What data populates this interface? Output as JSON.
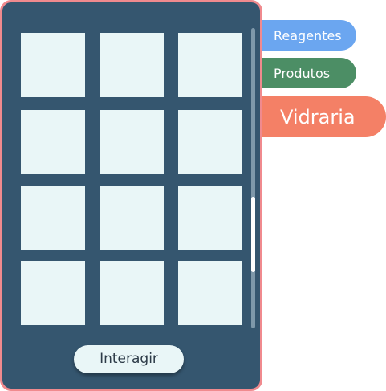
{
  "inventory": {
    "slot_count": 12,
    "columns": 3,
    "scroll_position": 0.75,
    "visible_fraction": 0.25
  },
  "actions": {
    "interact_label": "Interagir"
  },
  "tabs": [
    {
      "id": "reagentes",
      "label": "Reagentes",
      "color": "#6ba6f0",
      "active": false
    },
    {
      "id": "produtos",
      "label": "Produtos",
      "color": "#4c8e65",
      "active": false
    },
    {
      "id": "vidraria",
      "label": "Vidraria",
      "color": "#f48066",
      "active": true
    }
  ],
  "colors": {
    "panel_background": "#35566f",
    "panel_border": "#f08a8e",
    "slot_background": "#e9f6f7",
    "button_background": "#e9f6f7"
  }
}
